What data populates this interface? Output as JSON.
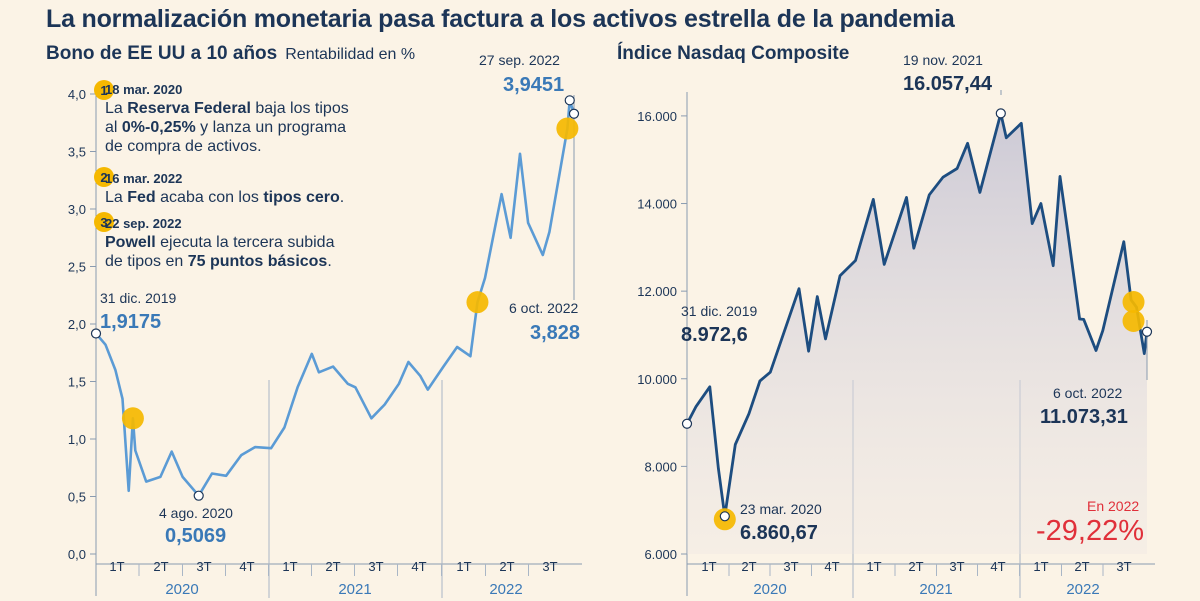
{
  "title": "La normalización monetaria pasa factura a los activos estrella de la pandemia",
  "colors": {
    "bond": "#5b9bd5",
    "nasdaq": "#1d4d80",
    "marker": "#f5b800",
    "red": "#e0303a",
    "text": "#1c3557",
    "background": "#fbf3e6"
  },
  "left": {
    "subtitle": "Bono de EE UU a 10 años",
    "unit": "Rentabilidad en %",
    "notes": [
      {
        "num": "1",
        "date": "18 mar. 2020",
        "t1": "La ",
        "b1": "Reserva Federal",
        "t2": " baja los tipos",
        "t3": "al ",
        "b2": "0%-0,25%",
        "t4": " y lanza un programa",
        "t5": "de compra de activos."
      },
      {
        "num": "2",
        "date": "16 mar. 2022",
        "t1": "La ",
        "b1": "Fed",
        "t2": " acaba con los ",
        "b2": "tipos cero",
        "t3": "."
      },
      {
        "num": "3",
        "date": "22 sep. 2022",
        "b1": "Powell",
        "t1": " ejecuta la tercera subida",
        "t2": "de tipos en ",
        "b2": "75 puntos básicos",
        "t3": "."
      }
    ],
    "annotations": [
      {
        "date": "31 dic. 2019",
        "value": "1,9175"
      },
      {
        "date": "4 ago. 2020",
        "value": "0,5069"
      },
      {
        "date": "27 sep. 2022",
        "value": "3,9451"
      },
      {
        "date": "6 oct. 2022",
        "value": "3,828"
      }
    ]
  },
  "right": {
    "subtitle": "Índice Nasdaq Composite",
    "annotations": [
      {
        "date": "31 dic. 2019",
        "value": "8.972,6"
      },
      {
        "date": "23 mar. 2020",
        "value": "6.860,67"
      },
      {
        "date": "19 nov. 2021",
        "value": "16.057,44"
      },
      {
        "date": "6 oct. 2022",
        "value": "11.073,31"
      }
    ],
    "ytd_label": "En 2022",
    "ytd_value": "-29,22%"
  },
  "chart_data": [
    {
      "type": "line",
      "title": "Bono de EE UU a 10 años",
      "ylabel": "Rentabilidad en %",
      "ylim": [
        0,
        4
      ],
      "yticks": [
        "0,0",
        "0,5",
        "1,0",
        "1,5",
        "2,0",
        "2,5",
        "3,0",
        "3,5",
        "4,0"
      ],
      "quarters": [
        "1T",
        "2T",
        "3T",
        "4T",
        "1T",
        "2T",
        "3T",
        "4T",
        "1T",
        "2T",
        "3T"
      ],
      "years": [
        "2020",
        "2021",
        "2022"
      ],
      "grid": false,
      "series": [
        {
          "x": [
            "2019-12-31",
            "2020-01-20",
            "2020-02-10",
            "2020-02-25",
            "2020-03-09",
            "2020-03-18",
            "2020-03-23",
            "2020-04-15",
            "2020-05-15",
            "2020-06-08",
            "2020-07-01",
            "2020-08-04",
            "2020-09-01",
            "2020-10-01",
            "2020-11-02",
            "2020-12-01",
            "2021-01-04",
            "2021-02-01",
            "2021-03-01",
            "2021-03-31",
            "2021-04-15",
            "2021-05-15",
            "2021-06-15",
            "2021-07-01",
            "2021-08-04",
            "2021-09-01",
            "2021-10-01",
            "2021-10-21",
            "2021-11-15",
            "2021-12-01",
            "2022-01-03",
            "2022-02-01",
            "2022-03-01",
            "2022-03-16",
            "2022-04-01",
            "2022-05-06",
            "2022-05-25",
            "2022-06-14",
            "2022-07-01",
            "2022-08-01",
            "2022-08-15",
            "2022-09-01",
            "2022-09-22",
            "2022-09-27",
            "2022-10-06"
          ],
          "y": [
            1.9175,
            1.82,
            1.6,
            1.35,
            0.55,
            1.18,
            0.9,
            0.63,
            0.67,
            0.89,
            0.67,
            0.5069,
            0.7,
            0.68,
            0.86,
            0.93,
            0.92,
            1.1,
            1.45,
            1.74,
            1.58,
            1.63,
            1.48,
            1.45,
            1.18,
            1.3,
            1.48,
            1.67,
            1.55,
            1.43,
            1.63,
            1.8,
            1.72,
            2.19,
            2.4,
            3.13,
            2.75,
            3.48,
            2.88,
            2.6,
            2.8,
            3.2,
            3.7,
            3.9451,
            3.828
          ]
        }
      ]
    },
    {
      "type": "area",
      "title": "Índice Nasdaq Composite",
      "ylim": [
        6000,
        16500
      ],
      "yticks": [
        "6.000",
        "8.000",
        "10.000",
        "12.000",
        "14.000",
        "16.000"
      ],
      "quarters": [
        "1T",
        "2T",
        "3T",
        "4T",
        "1T",
        "2T",
        "3T",
        "4T",
        "1T",
        "2T",
        "3T"
      ],
      "years": [
        "2020",
        "2021",
        "2022"
      ],
      "grid": false,
      "series": [
        {
          "x": [
            "2019-12-31",
            "2020-01-20",
            "2020-02-19",
            "2020-03-09",
            "2020-03-23",
            "2020-04-15",
            "2020-05-15",
            "2020-06-08",
            "2020-07-01",
            "2020-09-02",
            "2020-09-23",
            "2020-10-12",
            "2020-10-30",
            "2020-12-01",
            "2021-01-04",
            "2021-02-12",
            "2021-03-08",
            "2021-04-26",
            "2021-05-12",
            "2021-06-15",
            "2021-07-15",
            "2021-08-15",
            "2021-09-07",
            "2021-10-04",
            "2021-11-19",
            "2021-12-01",
            "2022-01-03",
            "2022-01-27",
            "2022-02-15",
            "2022-03-14",
            "2022-03-29",
            "2022-04-15",
            "2022-05-11",
            "2022-05-20",
            "2022-06-16",
            "2022-07-01",
            "2022-08-16",
            "2022-09-01",
            "2022-09-13",
            "2022-09-30",
            "2022-10-06"
          ],
          "y": [
            8972.6,
            9370,
            9817,
            7950,
            6860.67,
            8500,
            9200,
            9950,
            10150,
            12056,
            10630,
            11876,
            10911,
            12350,
            12700,
            14095,
            12610,
            14138,
            12980,
            14200,
            14600,
            14800,
            15374,
            14255,
            16057.44,
            15500,
            15832,
            13542,
            14000,
            12581,
            14620,
            13350,
            11364,
            11354,
            10646,
            11100,
            13128,
            11800,
            11633,
            10575,
            11073.31
          ]
        }
      ]
    }
  ]
}
